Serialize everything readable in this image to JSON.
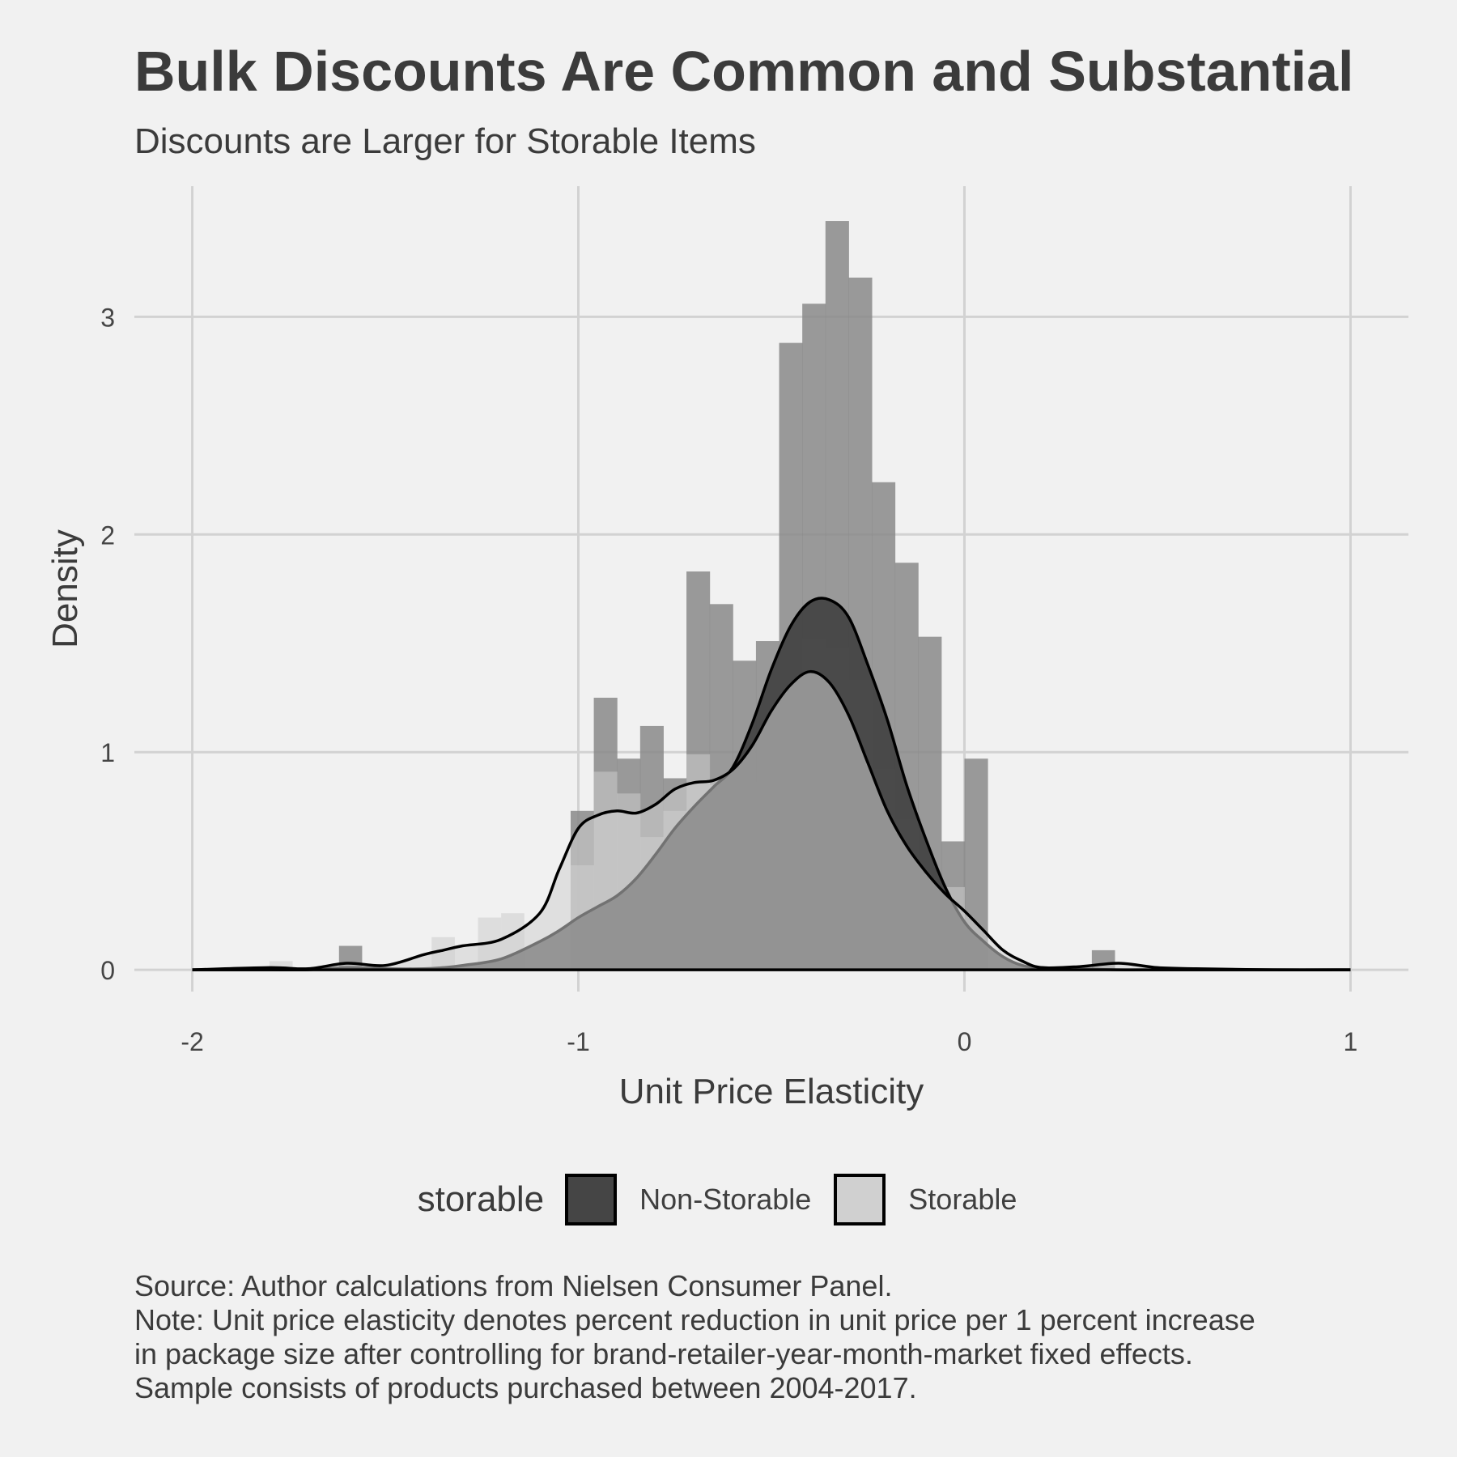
{
  "chart_data": {
    "type": "histogram+density",
    "title": "Bulk Discounts Are Common and Substantial",
    "subtitle": "Discounts are Larger for Storable Items",
    "xlabel": "Unit Price Elasticity",
    "ylabel": "Density",
    "xlim": [
      -2.15,
      1.15
    ],
    "ylim": [
      -0.1,
      3.6
    ],
    "x_ticks": [
      -2,
      -1,
      0,
      1
    ],
    "y_ticks": [
      0,
      1,
      2,
      3
    ],
    "grid": true,
    "legend": {
      "title": "storable",
      "position": "bottom",
      "entries": [
        {
          "label": "Non-Storable",
          "color": "#454545"
        },
        {
          "label": "Storable",
          "color": "#d0d0d0"
        }
      ]
    },
    "histogram": {
      "bin_start": -1.02,
      "bin_width": 0.06,
      "series": [
        {
          "name": "Non-Storable",
          "color": "#8a8a8a",
          "values": [
            0.73,
            1.25,
            0.97,
            1.12,
            0.88,
            1.83,
            1.68,
            1.42,
            1.51,
            2.88,
            3.06,
            3.44,
            3.18,
            2.24,
            1.87,
            1.53,
            0.59,
            0.97
          ]
        },
        {
          "name": "Storable",
          "color": "#cccccc",
          "values": [
            0.48,
            0.91,
            0.81,
            0.61,
            0.73,
            0.99,
            0.85,
            0.82,
            0.86,
            1.22,
            1.52,
            1.48,
            1.33,
            0.92,
            0.69,
            0.34,
            0.38,
            0.05
          ]
        }
      ],
      "extra_bins": [
        {
          "series": "Non-Storable",
          "x": [
            -1.62,
            -1.56
          ],
          "value": 0.11
        },
        {
          "series": "Non-Storable",
          "x": [
            0.33,
            0.39
          ],
          "value": 0.09
        },
        {
          "series": "Storable",
          "x": [
            -1.8,
            -1.74
          ],
          "value": 0.04
        },
        {
          "series": "Storable",
          "x": [
            -1.38,
            -1.32
          ],
          "value": 0.15
        },
        {
          "series": "Storable",
          "x": [
            -1.26,
            -1.2
          ],
          "value": 0.24
        },
        {
          "series": "Storable",
          "x": [
            -1.2,
            -1.14
          ],
          "value": 0.26
        }
      ]
    },
    "density": {
      "x": [
        -2.0,
        -1.8,
        -1.7,
        -1.6,
        -1.5,
        -1.4,
        -1.35,
        -1.3,
        -1.2,
        -1.1,
        -1.05,
        -1.0,
        -0.95,
        -0.9,
        -0.85,
        -0.8,
        -0.75,
        -0.7,
        -0.65,
        -0.6,
        -0.55,
        -0.5,
        -0.45,
        -0.4,
        -0.35,
        -0.3,
        -0.25,
        -0.2,
        -0.15,
        -0.1,
        -0.05,
        0.0,
        0.05,
        0.1,
        0.15,
        0.2,
        0.3,
        0.4,
        0.5,
        0.6,
        0.8,
        1.0
      ],
      "series": [
        {
          "name": "Non-Storable",
          "values": [
            0.0,
            0.0,
            0.0,
            0.01,
            0.005,
            0.005,
            0.01,
            0.02,
            0.05,
            0.13,
            0.18,
            0.24,
            0.29,
            0.34,
            0.42,
            0.53,
            0.65,
            0.75,
            0.84,
            0.93,
            1.13,
            1.38,
            1.58,
            1.69,
            1.7,
            1.62,
            1.4,
            1.15,
            0.85,
            0.6,
            0.38,
            0.22,
            0.13,
            0.06,
            0.02,
            0.01,
            0.005,
            0.0,
            0.0,
            0.0,
            0.0,
            0.0
          ]
        },
        {
          "name": "Storable",
          "values": [
            0.0,
            0.01,
            0.005,
            0.03,
            0.02,
            0.07,
            0.09,
            0.11,
            0.14,
            0.26,
            0.46,
            0.65,
            0.71,
            0.73,
            0.72,
            0.76,
            0.83,
            0.86,
            0.87,
            0.92,
            1.03,
            1.19,
            1.31,
            1.37,
            1.32,
            1.17,
            0.95,
            0.73,
            0.57,
            0.45,
            0.35,
            0.27,
            0.18,
            0.09,
            0.04,
            0.01,
            0.015,
            0.03,
            0.01,
            0.005,
            0.0,
            0.0
          ]
        }
      ]
    }
  },
  "caption": [
    "Source: Author calculations from Nielsen Consumer Panel.",
    "Note: Unit price elasticity denotes percent reduction in unit price per 1 percent increase",
    "in package size after controlling for brand-retailer-year-month-market fixed effects.",
    "Sample consists of products purchased between 2004-2017."
  ]
}
